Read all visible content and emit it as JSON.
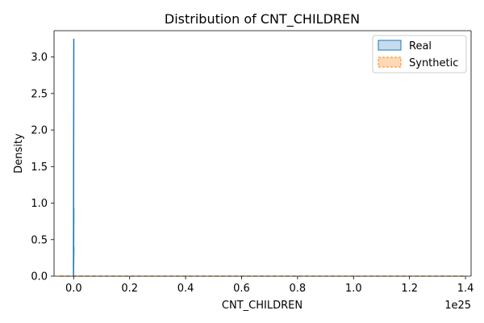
{
  "chart_data": {
    "type": "area",
    "title": "Distribution of CNT_CHILDREN",
    "xlabel": "CNT_CHILDREN",
    "ylabel": "Density",
    "x_offset_label": "1e25",
    "xlim": [
      -0.07,
      1.42
    ],
    "ylim": [
      0,
      3.36
    ],
    "x_scale_factor": 1e+25,
    "xticks": [
      0.0,
      0.2,
      0.4,
      0.6,
      0.8,
      1.0,
      1.2,
      1.4
    ],
    "xtick_labels": [
      "0.0",
      "0.2",
      "0.4",
      "0.6",
      "0.8",
      "1.0",
      "1.2",
      "1.4"
    ],
    "yticks": [
      0.0,
      0.5,
      1.0,
      1.5,
      2.0,
      2.5,
      3.0
    ],
    "ytick_labels": [
      "0.0",
      "0.5",
      "1.0",
      "1.5",
      "2.0",
      "2.5",
      "3.0"
    ],
    "grid": false,
    "legend_position": "top-right",
    "series": [
      {
        "name": "Real",
        "color": "#1f77b4",
        "fill": "#c6dbef",
        "line_style": "solid",
        "points": [
          [
            0.0,
            0.0
          ],
          [
            0.0,
            3.25
          ],
          [
            0.0,
            0.0
          ],
          [
            0.0,
            0.93
          ],
          [
            0.0,
            0.0
          ],
          [
            0.0,
            0.4
          ],
          [
            0.0,
            0.0
          ]
        ]
      },
      {
        "name": "Synthetic",
        "color": "#ff7f0e",
        "fill": "#fdd9b5",
        "line_style": "dashed",
        "points": [
          [
            -0.05,
            0.0
          ],
          [
            1.4,
            0.0
          ]
        ]
      }
    ]
  }
}
